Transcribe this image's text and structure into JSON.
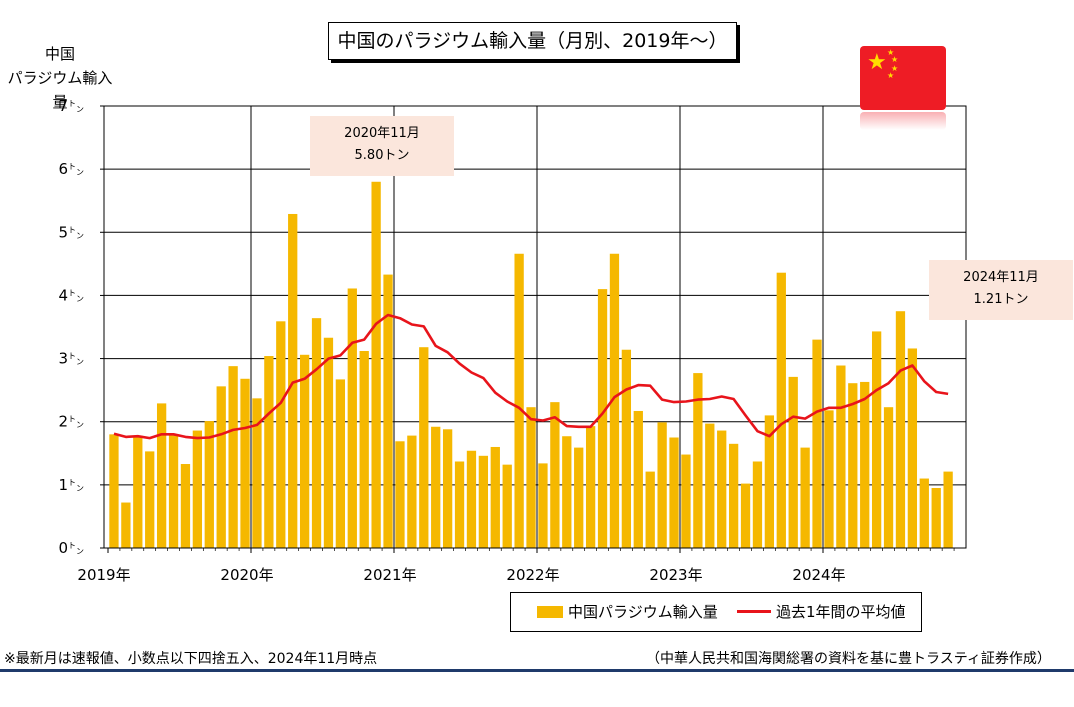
{
  "title": "中国のパラジウム輸入量（月別、2019年～）",
  "y_axis_title_line1": "中国",
  "y_axis_title_line2": "パラジウム輸入量",
  "callouts": [
    {
      "line1": "2020年11月",
      "line2": "5.80トン"
    },
    {
      "line1": "2024年11月",
      "line2": "1.21トン"
    }
  ],
  "legend": {
    "bars": "中国パラジウム輸入量",
    "line": "過去1年間の平均値"
  },
  "footnote": "※最新月は速報値、小数点以下四捨五入、2024年11月時点",
  "source": "（中華人民共和国海関総署の資料を基に豊トラスティ証券作成）",
  "colors": {
    "bar": "#f5b800",
    "line": "#e8141b",
    "flag": "#ee1c25",
    "star": "#ffde00",
    "rule": "#1f3a6b"
  },
  "icon": "china-flag-icon",
  "chart_data": {
    "type": "bar",
    "x_tick_labels": [
      "2019年",
      "2020年",
      "2021年",
      "2022年",
      "2023年",
      "2024年"
    ],
    "y_tick_labels": [
      "0トン",
      "1トン",
      "2トン",
      "3トン",
      "4トン",
      "5トン",
      "6トン",
      "7トン"
    ],
    "ylim": [
      0,
      7
    ],
    "grid": true,
    "legend_position": "bottom-right",
    "months": [
      "2019-01",
      "2019-02",
      "2019-03",
      "2019-04",
      "2019-05",
      "2019-06",
      "2019-07",
      "2019-08",
      "2019-09",
      "2019-10",
      "2019-11",
      "2019-12",
      "2020-01",
      "2020-02",
      "2020-03",
      "2020-04",
      "2020-05",
      "2020-06",
      "2020-07",
      "2020-08",
      "2020-09",
      "2020-10",
      "2020-11",
      "2020-12",
      "2021-01",
      "2021-02",
      "2021-03",
      "2021-04",
      "2021-05",
      "2021-06",
      "2021-07",
      "2021-08",
      "2021-09",
      "2021-10",
      "2021-11",
      "2021-12",
      "2022-01",
      "2022-02",
      "2022-03",
      "2022-04",
      "2022-05",
      "2022-06",
      "2022-07",
      "2022-08",
      "2022-09",
      "2022-10",
      "2022-11",
      "2022-12",
      "2023-01",
      "2023-02",
      "2023-03",
      "2023-04",
      "2023-05",
      "2023-06",
      "2023-07",
      "2023-08",
      "2023-09",
      "2023-10",
      "2023-11",
      "2023-12",
      "2024-01",
      "2024-02",
      "2024-03",
      "2024-04",
      "2024-05",
      "2024-06",
      "2024-07",
      "2024-08",
      "2024-09",
      "2024-10",
      "2024-11"
    ],
    "series": [
      {
        "name": "中国パラジウム輸入量",
        "type": "bar",
        "values": [
          1.8,
          0.72,
          1.78,
          1.53,
          2.29,
          1.8,
          1.33,
          1.86,
          2.01,
          2.56,
          2.88,
          2.68,
          2.37,
          3.04,
          3.59,
          5.29,
          3.06,
          3.64,
          3.33,
          2.67,
          4.11,
          3.12,
          5.8,
          4.33,
          1.69,
          1.78,
          3.18,
          1.92,
          1.88,
          1.37,
          1.54,
          1.46,
          1.6,
          1.32,
          4.66,
          2.23,
          1.34,
          2.31,
          1.77,
          1.59,
          1.93,
          4.1,
          4.66,
          3.14,
          2.17,
          1.21,
          1.99,
          1.75,
          1.48,
          2.77,
          1.97,
          1.86,
          1.65,
          1.02,
          1.37,
          2.1,
          4.36,
          2.71,
          1.59,
          3.3,
          2.18,
          2.89,
          2.61,
          2.63,
          3.43,
          2.23,
          3.75,
          3.16,
          1.1,
          0.95,
          1.21
        ]
      },
      {
        "name": "過去1年間の平均値",
        "type": "line",
        "values": [
          1.81,
          1.76,
          1.77,
          1.74,
          1.8,
          1.8,
          1.76,
          1.74,
          1.75,
          1.8,
          1.87,
          1.9,
          1.95,
          2.13,
          2.3,
          2.62,
          2.68,
          2.83,
          3.0,
          3.05,
          3.25,
          3.3,
          3.55,
          3.69,
          3.64,
          3.54,
          3.51,
          3.2,
          3.1,
          2.92,
          2.78,
          2.69,
          2.46,
          2.32,
          2.22,
          2.04,
          2.02,
          2.07,
          1.93,
          1.92,
          1.92,
          2.13,
          2.39,
          2.51,
          2.58,
          2.57,
          2.35,
          2.31,
          2.32,
          2.35,
          2.36,
          2.4,
          2.36,
          2.1,
          1.85,
          1.77,
          1.96,
          2.08,
          2.05,
          2.16,
          2.22,
          2.22,
          2.28,
          2.36,
          2.5,
          2.61,
          2.81,
          2.89,
          2.64,
          2.47,
          2.44
        ]
      }
    ]
  }
}
